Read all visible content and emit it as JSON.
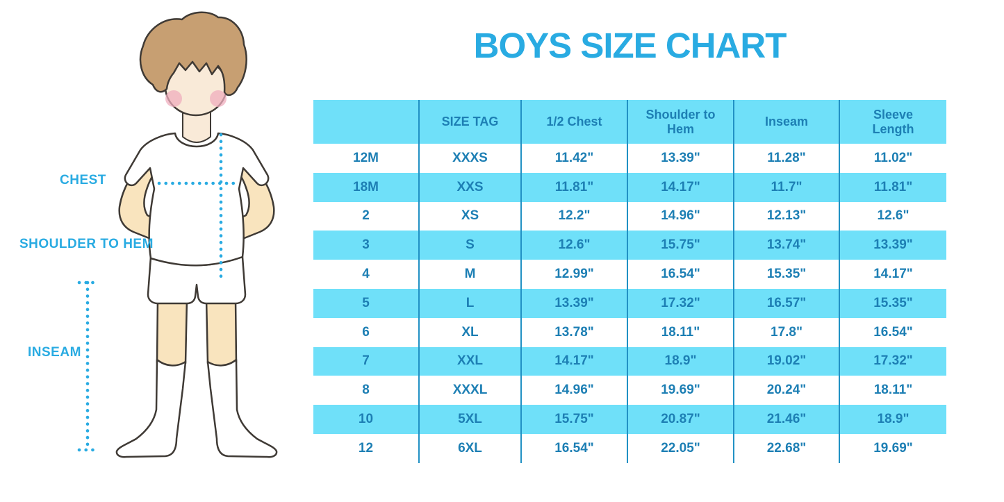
{
  "title": "BOYS SIZE CHART",
  "figure_labels": {
    "chest": "CHEST",
    "shoulder_to_hem": "SHOULDER TO HEM",
    "inseam": "INSEAM"
  },
  "chart_data": {
    "type": "table",
    "title": "BOYS SIZE CHART",
    "columns": [
      "",
      "SIZE TAG",
      "1/2 Chest",
      "Shoulder to Hem",
      "Inseam",
      "Sleeve Length"
    ],
    "rows": [
      [
        "12M",
        "XXXS",
        "11.42\"",
        "13.39\"",
        "11.28\"",
        "11.02\""
      ],
      [
        "18M",
        "XXS",
        "11.81\"",
        "14.17\"",
        "11.7\"",
        "11.81\""
      ],
      [
        "2",
        "XS",
        "12.2\"",
        "14.96\"",
        "12.13\"",
        "12.6\""
      ],
      [
        "3",
        "S",
        "12.6\"",
        "15.75\"",
        "13.74\"",
        "13.39\""
      ],
      [
        "4",
        "M",
        "12.99\"",
        "16.54\"",
        "15.35\"",
        "14.17\""
      ],
      [
        "5",
        "L",
        "13.39\"",
        "17.32\"",
        "16.57\"",
        "15.35\""
      ],
      [
        "6",
        "XL",
        "13.78\"",
        "18.11\"",
        "17.8\"",
        "16.54\""
      ],
      [
        "7",
        "XXL",
        "14.17\"",
        "18.9\"",
        "19.02\"",
        "17.32\""
      ],
      [
        "8",
        "XXXL",
        "14.96\"",
        "19.69\"",
        "20.24\"",
        "18.11\""
      ],
      [
        "10",
        "5XL",
        "15.75\"",
        "20.87\"",
        "21.46\"",
        "18.9\""
      ],
      [
        "12",
        "6XL",
        "16.54\"",
        "22.05\"",
        "22.68\"",
        "19.69\""
      ]
    ],
    "layout": {
      "header_background": "#6FE0F9",
      "zebra_row_background": "#6FE0F9",
      "row_striping": "odd rows white, even rows light blue",
      "column_dividers": true,
      "horizontal_gridlines": false
    }
  },
  "colors": {
    "accent_blue": "#29ABE2",
    "table_fill_blue": "#6FE0F9",
    "table_text_blue": "#1D7FB4",
    "divider_blue": "#2191C4",
    "skin": "#F9E4BE",
    "face_skin": "#F9EAD8",
    "hair_brown": "#C79F72",
    "outline": "#3F3A35",
    "blush_pink": "#EFAEBE"
  }
}
